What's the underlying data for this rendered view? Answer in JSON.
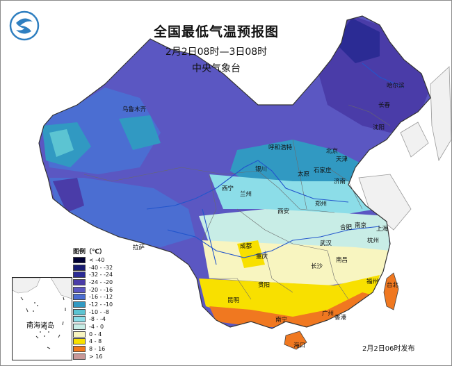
{
  "title": "全国最低气温预报图",
  "period": "2月2日08时—3日08时",
  "issuer": "中央气象台",
  "legend_title": "图例（℃）",
  "legend": [
    {
      "label": "< -40",
      "color": "#000033"
    },
    {
      "label": "-40 - -32",
      "color": "#171b72"
    },
    {
      "label": "-32 - -24",
      "color": "#2b2b94"
    },
    {
      "label": "-24 - -20",
      "color": "#4a3ca8"
    },
    {
      "label": "-20 - -16",
      "color": "#5b57c2"
    },
    {
      "label": "-16 - -12",
      "color": "#4b6ed2"
    },
    {
      "label": "-12 - -10",
      "color": "#3199c2"
    },
    {
      "label": "-10 - -8",
      "color": "#5cc4d2"
    },
    {
      "label": "-8 - -4",
      "color": "#8cdde8"
    },
    {
      "label": "-4 - 0",
      "color": "#c8ede6"
    },
    {
      "label": "0 - 4",
      "color": "#f8f5c0"
    },
    {
      "label": "4 - 8",
      "color": "#f8e000"
    },
    {
      "label": "8 - 16",
      "color": "#f07820"
    },
    {
      "label": "> 16",
      "color": "#c89898"
    }
  ],
  "inset_label": "南海诸岛",
  "release_time": "2月2日06时发布",
  "cities": [
    {
      "name": "乌鲁木齐"
    },
    {
      "name": "哈尔滨"
    },
    {
      "name": "长春"
    },
    {
      "name": "沈阳"
    },
    {
      "name": "呼和浩特"
    },
    {
      "name": "北京"
    },
    {
      "name": "天津"
    },
    {
      "name": "银川"
    },
    {
      "name": "太原"
    },
    {
      "name": "石家庄"
    },
    {
      "name": "济南"
    },
    {
      "name": "西宁"
    },
    {
      "name": "兰州"
    },
    {
      "name": "郑州"
    },
    {
      "name": "西安"
    },
    {
      "name": "合肥"
    },
    {
      "name": "南京"
    },
    {
      "name": "上海"
    },
    {
      "name": "拉萨"
    },
    {
      "name": "成都"
    },
    {
      "name": "武汉"
    },
    {
      "name": "杭州"
    },
    {
      "name": "重庆"
    },
    {
      "name": "长沙"
    },
    {
      "name": "南昌"
    },
    {
      "name": "贵阳"
    },
    {
      "name": "福州"
    },
    {
      "name": "台北"
    },
    {
      "name": "昆明"
    },
    {
      "name": "广州"
    },
    {
      "name": "香港"
    },
    {
      "name": "南宁"
    },
    {
      "name": "海口"
    }
  ]
}
